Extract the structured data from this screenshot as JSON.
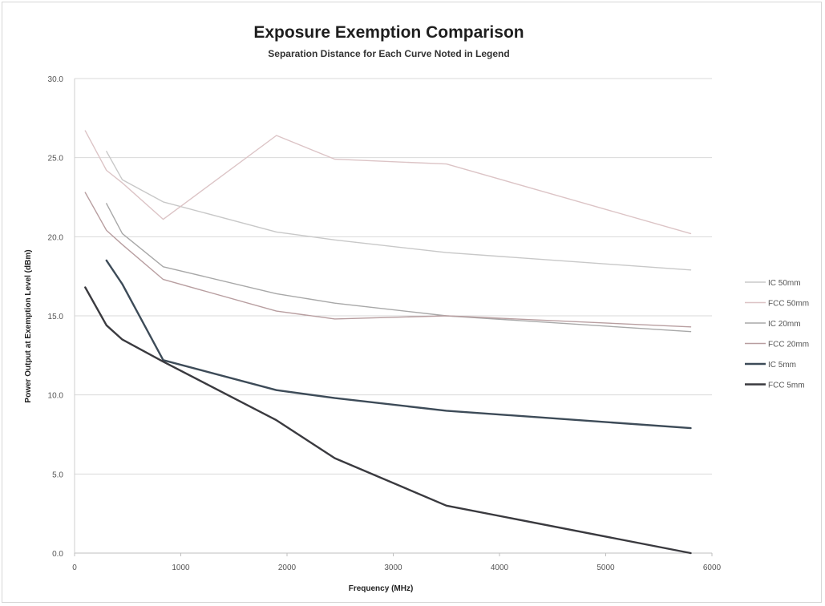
{
  "chart_data": {
    "type": "line",
    "title": "Exposure Exemption Comparison",
    "subtitle": "Separation Distance for Each Curve Noted in Legend",
    "xlabel": "Frequency (MHz)",
    "ylabel": "Power Output at Exemption Level (dBm)",
    "xlim": [
      0,
      6000
    ],
    "ylim": [
      0,
      30
    ],
    "x_ticks": [
      0,
      1000,
      2000,
      3000,
      4000,
      5000,
      6000
    ],
    "x_tick_labels": [
      "0",
      "1000",
      "2000",
      "3000",
      "4000",
      "5000",
      "6000"
    ],
    "y_ticks": [
      0,
      5,
      10,
      15,
      20,
      25,
      30
    ],
    "y_tick_labels": [
      "0.0",
      "5.0",
      "10.0",
      "15.0",
      "20.0",
      "25.0",
      "30.0"
    ],
    "grid": "horizontal",
    "legend_position": "right",
    "series": [
      {
        "name": "IC 50mm",
        "color": "#c8c8c8",
        "width": 1.4,
        "points": [
          [
            300,
            25.4
          ],
          [
            450,
            23.6
          ],
          [
            835,
            22.2
          ],
          [
            1900,
            20.3
          ],
          [
            2450,
            19.8
          ],
          [
            3500,
            19.0
          ],
          [
            5800,
            17.9
          ]
        ]
      },
      {
        "name": "FCC 50mm",
        "color": "#dcc4c6",
        "width": 1.4,
        "points": [
          [
            100,
            26.7
          ],
          [
            300,
            24.2
          ],
          [
            450,
            23.4
          ],
          [
            835,
            21.1
          ],
          [
            1900,
            26.4
          ],
          [
            2450,
            24.9
          ],
          [
            3500,
            24.6
          ],
          [
            5800,
            20.2
          ]
        ]
      },
      {
        "name": "IC 20mm",
        "color": "#a8a8a8",
        "width": 1.4,
        "points": [
          [
            300,
            22.1
          ],
          [
            450,
            20.2
          ],
          [
            835,
            18.1
          ],
          [
            1900,
            16.4
          ],
          [
            2450,
            15.8
          ],
          [
            3500,
            15.0
          ],
          [
            5800,
            14.0
          ]
        ]
      },
      {
        "name": "FCC 20mm",
        "color": "#b89ea0",
        "width": 1.4,
        "points": [
          [
            100,
            22.8
          ],
          [
            300,
            20.4
          ],
          [
            450,
            19.5
          ],
          [
            835,
            17.3
          ],
          [
            1900,
            15.3
          ],
          [
            2450,
            14.8
          ],
          [
            3500,
            15.0
          ],
          [
            5800,
            14.3
          ]
        ]
      },
      {
        "name": "IC 5mm",
        "color": "#3d4b58",
        "width": 2.4,
        "points": [
          [
            300,
            18.5
          ],
          [
            450,
            17.0
          ],
          [
            835,
            12.2
          ],
          [
            1900,
            10.3
          ],
          [
            2450,
            9.8
          ],
          [
            3500,
            9.0
          ],
          [
            5800,
            7.9
          ]
        ]
      },
      {
        "name": "FCC 5mm",
        "color": "#3a3a3f",
        "width": 2.4,
        "points": [
          [
            100,
            16.8
          ],
          [
            300,
            14.4
          ],
          [
            450,
            13.5
          ],
          [
            835,
            12.1
          ],
          [
            1900,
            8.4
          ],
          [
            2450,
            6.0
          ],
          [
            3500,
            3.0
          ],
          [
            5800,
            0.0
          ]
        ]
      }
    ]
  }
}
